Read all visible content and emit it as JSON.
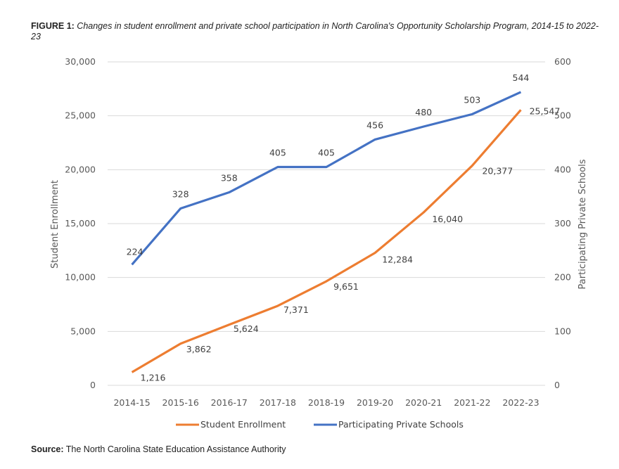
{
  "figure": {
    "label": "FIGURE 1:",
    "caption": "Changes in student enrollment and private school participation in North Carolina's Opportunity Scholarship Program, 2014-15 to 2022-23"
  },
  "source": {
    "label": "Source:",
    "text": "The North Carolina State Education Assistance Authority"
  },
  "chart_data": {
    "type": "line",
    "title": "Changes in student enrollment and private school participation in North Carolina's Opportunity Scholarship Program, 2014-15 to 2022-23",
    "categories": [
      "2014-15",
      "2015-16",
      "2016-17",
      "2017-18",
      "2018-19",
      "2019-20",
      "2020-21",
      "2021-22",
      "2022-23"
    ],
    "series": [
      {
        "name": "Student Enrollment",
        "axis": "left",
        "color": "#ED7D31",
        "values": [
          1216,
          3862,
          5624,
          7371,
          9651,
          12284,
          16040,
          20377,
          25547
        ],
        "labels": [
          "1,216",
          "3,862",
          "5,624",
          "7,371",
          "9,651",
          "12,284",
          "16,040",
          "20,377",
          "25,547"
        ]
      },
      {
        "name": "Participating Private Schools",
        "axis": "right",
        "color": "#4472C4",
        "values": [
          224,
          328,
          358,
          405,
          405,
          456,
          480,
          503,
          544
        ],
        "labels": [
          "224",
          "328",
          "358",
          "405",
          "405",
          "456",
          "480",
          "503",
          "544"
        ]
      }
    ],
    "ylabel": "Student Enrollment",
    "y2label": "Participating Private Schools",
    "ylim": [
      0,
      30000
    ],
    "y2lim": [
      0,
      600
    ],
    "yticks": [
      "0",
      "5,000",
      "10,000",
      "15,000",
      "20,000",
      "25,000",
      "30,000"
    ],
    "y2ticks": [
      "0",
      "100",
      "200",
      "300",
      "400",
      "500",
      "600"
    ],
    "grid": true,
    "legend": "bottom"
  }
}
